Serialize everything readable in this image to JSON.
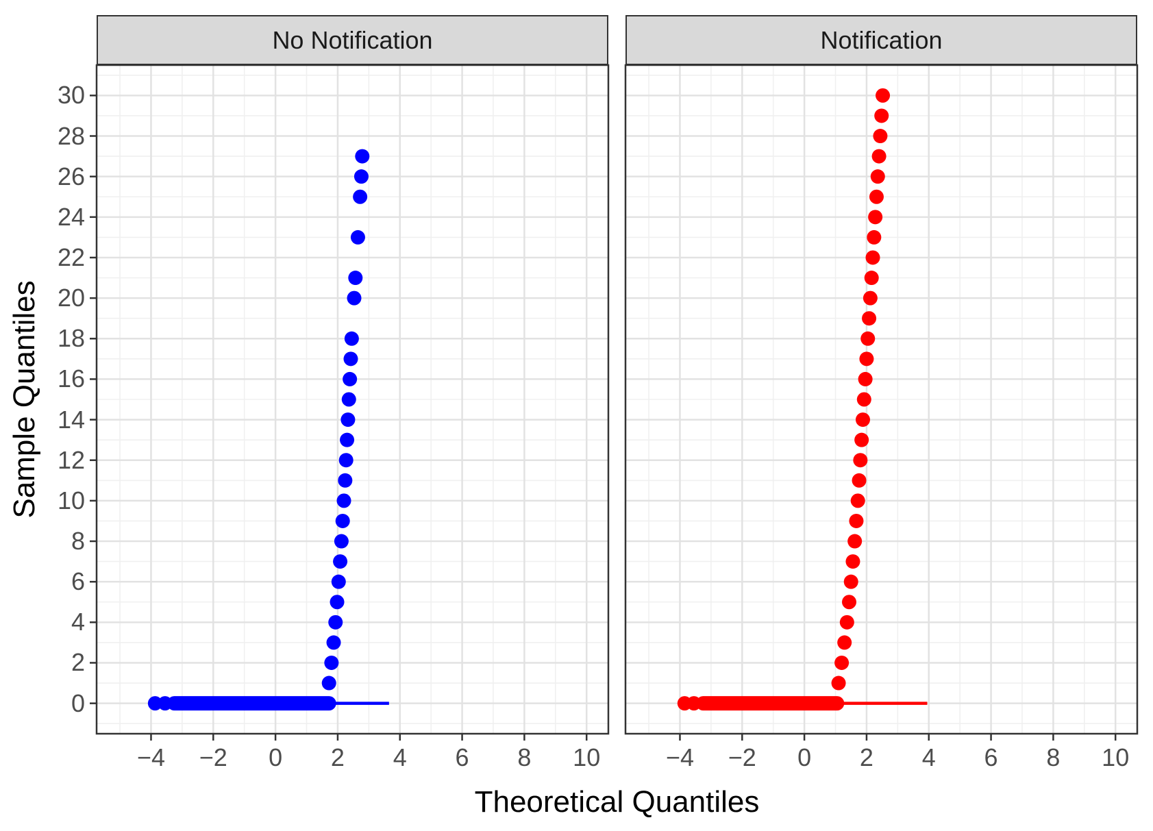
{
  "chart_data": {
    "type": "scatter",
    "subtype": "qq-plot-faceted",
    "title": "",
    "xlabel": "Theoretical Quantiles",
    "ylabel": "Sample Quantiles",
    "xlim": [
      -5.75,
      10.7
    ],
    "ylim": [
      -1.5,
      31.5
    ],
    "x_major_ticks": [
      -4,
      -2,
      0,
      2,
      4,
      6,
      8,
      10
    ],
    "x_tick_labels": [
      "−4",
      "−2",
      "0",
      "2",
      "4",
      "6",
      "8",
      "10"
    ],
    "x_minor_ticks": [
      -5,
      -3,
      -1,
      1,
      3,
      5,
      7,
      9
    ],
    "y_major_ticks": [
      0,
      2,
      4,
      6,
      8,
      10,
      12,
      14,
      16,
      18,
      20,
      22,
      24,
      26,
      28,
      30
    ],
    "y_tick_labels": [
      "0",
      "2",
      "4",
      "6",
      "8",
      "10",
      "12",
      "14",
      "16",
      "18",
      "20",
      "22",
      "24",
      "26",
      "28",
      "30"
    ],
    "y_minor_ticks": [
      -1,
      1,
      3,
      5,
      7,
      9,
      11,
      13,
      15,
      17,
      19,
      21,
      23,
      25,
      27,
      29,
      31
    ],
    "grid": {
      "major": true,
      "minor": true
    },
    "legend": "none",
    "style": {
      "panel_background": "#FFFFFF",
      "panel_border": "#333333",
      "grid_major": "#E2E2E2",
      "grid_minor": "#F0F0F0",
      "strip_fill": "#D9D9D9",
      "strip_text": "#1A1A1A",
      "tick_label_color": "#4D4D4D",
      "title_color": "#000000",
      "point_radius_px": 10.5
    },
    "facets": [
      {
        "label": "No Notification",
        "color": "#0000FF",
        "reference_line": {
          "x1": -3.8,
          "x2": 3.65,
          "y": 0
        },
        "zero_row": {
          "y": 0,
          "dots_x": [
            -3.87,
            -3.55
          ],
          "band_x": [
            -3.25,
            1.72
          ]
        },
        "points": [
          [
            1.72,
            1
          ],
          [
            1.8,
            2
          ],
          [
            1.87,
            3
          ],
          [
            1.93,
            4
          ],
          [
            1.98,
            5
          ],
          [
            2.03,
            6
          ],
          [
            2.08,
            7
          ],
          [
            2.12,
            8
          ],
          [
            2.16,
            9
          ],
          [
            2.2,
            10
          ],
          [
            2.24,
            11
          ],
          [
            2.27,
            12
          ],
          [
            2.3,
            13
          ],
          [
            2.33,
            14
          ],
          [
            2.36,
            15
          ],
          [
            2.39,
            16
          ],
          [
            2.42,
            17
          ],
          [
            2.45,
            18
          ],
          [
            2.53,
            20
          ],
          [
            2.57,
            21
          ],
          [
            2.65,
            23
          ],
          [
            2.72,
            25
          ],
          [
            2.76,
            26
          ],
          [
            2.79,
            27
          ]
        ]
      },
      {
        "label": "Notification",
        "color": "#FF0000",
        "reference_line": {
          "x1": -3.8,
          "x2": 3.95,
          "y": 0
        },
        "zero_row": {
          "y": 0,
          "dots_x": [
            -3.85,
            -3.55
          ],
          "band_x": [
            -3.25,
            1.05
          ]
        },
        "points": [
          [
            1.1,
            1
          ],
          [
            1.2,
            2
          ],
          [
            1.29,
            3
          ],
          [
            1.37,
            4
          ],
          [
            1.44,
            5
          ],
          [
            1.5,
            6
          ],
          [
            1.56,
            7
          ],
          [
            1.62,
            8
          ],
          [
            1.67,
            9
          ],
          [
            1.72,
            10
          ],
          [
            1.76,
            11
          ],
          [
            1.8,
            12
          ],
          [
            1.84,
            13
          ],
          [
            1.88,
            14
          ],
          [
            1.92,
            15
          ],
          [
            1.96,
            16
          ],
          [
            2.0,
            17
          ],
          [
            2.04,
            18
          ],
          [
            2.08,
            19
          ],
          [
            2.12,
            20
          ],
          [
            2.16,
            21
          ],
          [
            2.2,
            22
          ],
          [
            2.24,
            23
          ],
          [
            2.28,
            24
          ],
          [
            2.32,
            25
          ],
          [
            2.36,
            26
          ],
          [
            2.4,
            27
          ],
          [
            2.44,
            28
          ],
          [
            2.48,
            29
          ],
          [
            2.52,
            30
          ]
        ]
      }
    ]
  }
}
